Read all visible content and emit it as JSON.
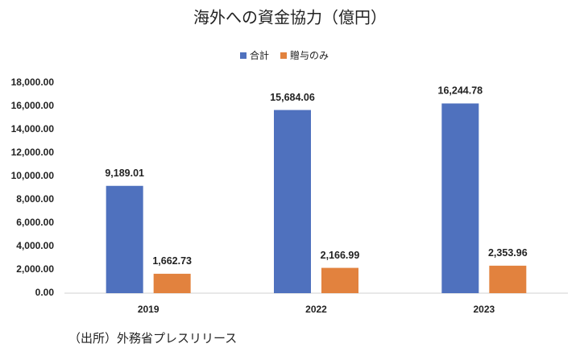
{
  "chart_data": {
    "type": "bar",
    "title": "海外への資金協力（億円）",
    "note": "（出所）外務省プレスリリース",
    "categories": [
      "2019",
      "2022",
      "2023"
    ],
    "series": [
      {
        "name": "合計",
        "color": "#4f71be",
        "values": [
          9189.01,
          15684.06,
          16244.78
        ],
        "value_labels": [
          "9,189.01",
          "15,684.06",
          "16,244.78"
        ]
      },
      {
        "name": "贈与のみ",
        "color": "#e2823e",
        "values": [
          1662.73,
          2166.99,
          2353.96
        ],
        "value_labels": [
          "1,662.73",
          "2,166.99",
          "2,353.96"
        ]
      }
    ],
    "ylim": [
      0,
      18000
    ],
    "yticks": [
      {
        "value": 0,
        "label": "0.00"
      },
      {
        "value": 2000,
        "label": "2,000.00"
      },
      {
        "value": 4000,
        "label": "4,000.00"
      },
      {
        "value": 6000,
        "label": "6,000.00"
      },
      {
        "value": 8000,
        "label": "8,000.00"
      },
      {
        "value": 10000,
        "label": "10,000.00"
      },
      {
        "value": 12000,
        "label": "12,000.00"
      },
      {
        "value": 14000,
        "label": "14,000.00"
      },
      {
        "value": 16000,
        "label": "16,000.00"
      },
      {
        "value": 18000,
        "label": "18,000.00"
      }
    ],
    "grid": false,
    "legend": "top"
  }
}
